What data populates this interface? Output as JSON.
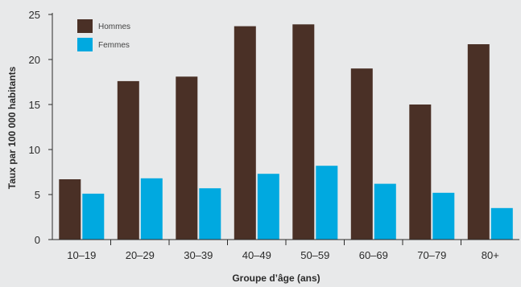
{
  "chart_data": {
    "type": "bar",
    "title": "",
    "xlabel": "Groupe d’âge (ans)",
    "ylabel": "Taux par 100 000 habitants",
    "categories": [
      "10–19",
      "20–29",
      "30–39",
      "40–49",
      "50–59",
      "60–69",
      "70–79",
      "80+"
    ],
    "series": [
      {
        "name": "Hommes",
        "color": "#4a3026",
        "values": [
          6.7,
          17.6,
          18.1,
          23.7,
          23.9,
          19.0,
          15.0,
          21.7
        ]
      },
      {
        "name": "Femmes",
        "color": "#00a9e0",
        "values": [
          5.1,
          6.8,
          5.7,
          7.3,
          8.2,
          6.2,
          5.2,
          3.5
        ]
      }
    ],
    "ylim": [
      0,
      25
    ],
    "yticks": [
      0,
      5,
      10,
      15,
      20,
      25
    ],
    "grid": false,
    "legend_position": "top-left"
  }
}
